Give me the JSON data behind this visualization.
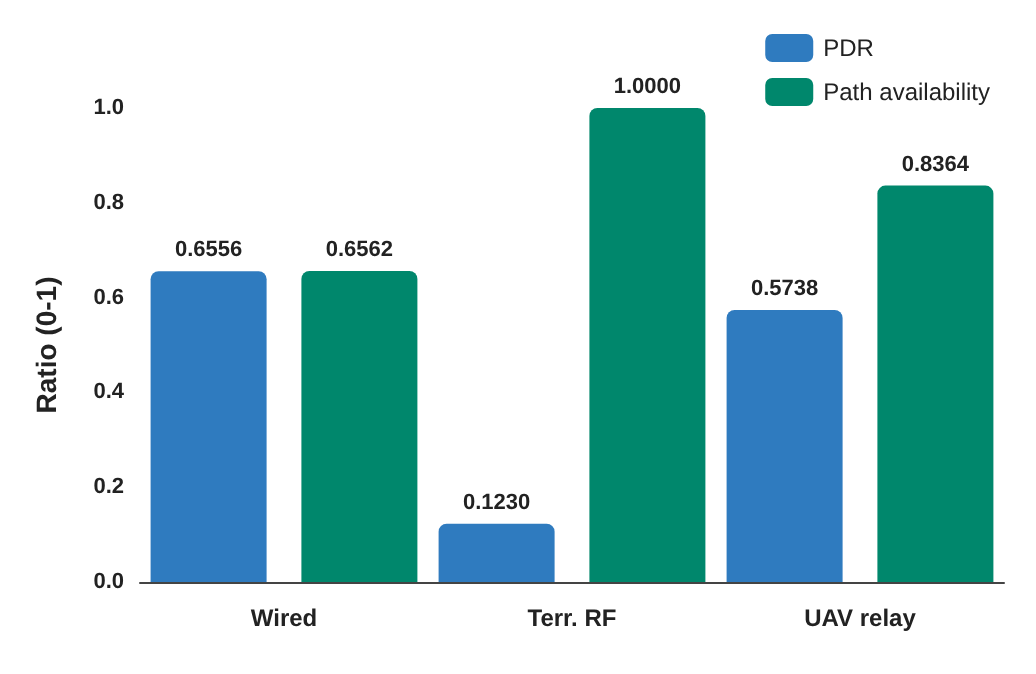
{
  "chart_data": {
    "type": "bar",
    "ylabel": "Ratio (0-1)",
    "categories": [
      "Wired",
      "Terr. RF",
      "UAV relay"
    ],
    "series": [
      {
        "name": "PDR",
        "color": "#2f7bbf",
        "values": [
          0.6556,
          0.123,
          0.5738
        ],
        "value_labels": [
          "0.6556",
          "0.1230",
          "0.5738"
        ]
      },
      {
        "name": "Path availability",
        "color": "#00876c",
        "values": [
          0.6562,
          1.0,
          0.8364
        ],
        "value_labels": [
          "0.6562",
          "1.0000",
          "0.8364"
        ]
      }
    ],
    "ylim": [
      0,
      1
    ],
    "yticks": [
      {
        "value": 0,
        "label": "0.0"
      },
      {
        "value": 0.2,
        "label": "0.2"
      },
      {
        "value": 0.4,
        "label": "0.4"
      },
      {
        "value": 0.6,
        "label": "0.6"
      },
      {
        "value": 0.8,
        "label": "0.8"
      },
      {
        "value": 1,
        "label": "1.0"
      }
    ],
    "grid": false,
    "legend": "top right"
  }
}
